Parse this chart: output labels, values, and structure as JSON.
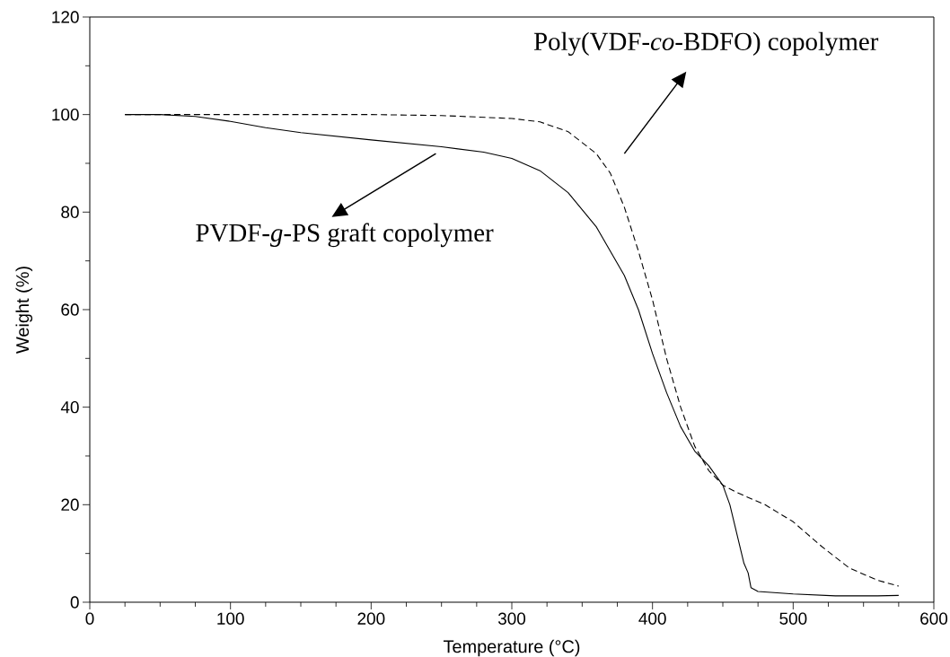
{
  "chart_data": {
    "type": "line",
    "xlabel": "Temperature (°C)",
    "ylabel": "Weight (%)",
    "xlim": [
      0,
      600
    ],
    "ylim": [
      0,
      120
    ],
    "xticks": [
      0,
      100,
      200,
      300,
      400,
      500,
      600
    ],
    "yticks": [
      0,
      20,
      40,
      60,
      80,
      100,
      120
    ],
    "grid": false,
    "marker": "none",
    "series": [
      {
        "color": "#000000",
        "line_style": "solid",
        "x": [
          25,
          50,
          75,
          100,
          125,
          150,
          200,
          250,
          280,
          300,
          320,
          340,
          360,
          380,
          390,
          400,
          410,
          420,
          430,
          440,
          450,
          455,
          460,
          465,
          468,
          470,
          475,
          500,
          530,
          560,
          575
        ],
        "values": [
          100,
          100,
          99.6,
          98.6,
          97.3,
          96.3,
          94.8,
          93.4,
          92.3,
          91,
          88.5,
          84,
          77,
          67,
          60,
          51,
          43,
          36,
          31,
          28,
          24,
          20,
          14,
          8,
          6,
          3,
          2.2,
          1.7,
          1.3,
          1.3,
          1.4
        ]
      },
      {
        "color": "#000000",
        "line_style": "dashed",
        "x": [
          25,
          100,
          200,
          250,
          300,
          320,
          340,
          360,
          370,
          380,
          390,
          400,
          410,
          420,
          430,
          440,
          450,
          460,
          480,
          500,
          520,
          540,
          560,
          575
        ],
        "values": [
          100,
          100,
          100,
          99.8,
          99.2,
          98.5,
          96.5,
          92,
          88,
          81,
          72,
          62,
          50,
          40,
          32,
          27,
          24,
          22.5,
          20,
          16.5,
          11.5,
          7,
          4.5,
          3.3
        ]
      }
    ],
    "annotations": [
      "PVDF-*g*-PS graft copolymer",
      "Poly(VDF-*co*-BDFO) copolymer"
    ]
  }
}
